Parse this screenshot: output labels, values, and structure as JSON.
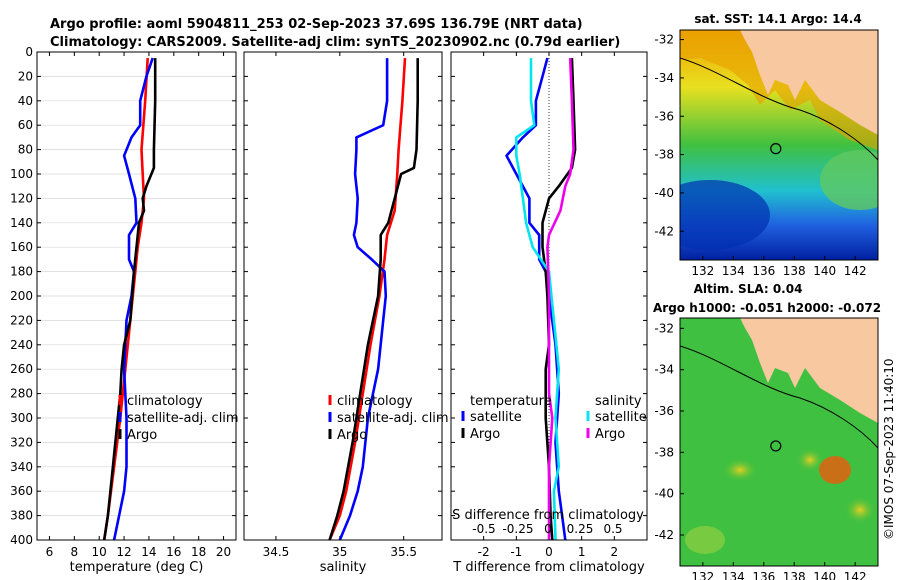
{
  "header": {
    "line1": "Argo profile: aoml 5904811_253 02-Sep-2023 37.69S 136.79E (NRT data)",
    "line2": "Climatology: CARS2009. Satellite-adj clim: synTS_20230902.nc (0.79d earlier)"
  },
  "colors": {
    "clim": "#ff0000",
    "sat": "#0000ff",
    "argo": "#000000",
    "sat_s": "#00e5ee",
    "argo_s": "#ee00ee",
    "land": "#f8c8a0"
  },
  "chart_data": [
    {
      "type": "line",
      "id": "temp",
      "xlabel": "temperature (deg C)",
      "ylabel": "",
      "xlim": [
        5,
        21
      ],
      "ylim": [
        400,
        0
      ],
      "xticks": [
        6,
        8,
        10,
        12,
        14,
        16,
        18,
        20
      ],
      "yticks": [
        0,
        20,
        40,
        60,
        80,
        100,
        120,
        140,
        160,
        180,
        200,
        220,
        240,
        260,
        280,
        300,
        320,
        340,
        360,
        380,
        400
      ],
      "legend": [
        "climatology",
        "satellite-adj. clim",
        "Argo"
      ],
      "series": [
        {
          "name": "climatology",
          "color": "#ff0000",
          "points": [
            [
              13.9,
              5
            ],
            [
              13.7,
              40
            ],
            [
              13.4,
              80
            ],
            [
              13.5,
              100
            ],
            [
              13.6,
              120
            ],
            [
              13.4,
              140
            ],
            [
              13.1,
              160
            ],
            [
              12.9,
              180
            ],
            [
              12.5,
              220
            ],
            [
              12.1,
              260
            ],
            [
              11.7,
              300
            ],
            [
              11.2,
              340
            ],
            [
              10.7,
              380
            ],
            [
              10.4,
              400
            ]
          ]
        },
        {
          "name": "satellite-adj. clim",
          "color": "#0000ff",
          "points": [
            [
              14.3,
              5
            ],
            [
              13.8,
              20
            ],
            [
              13.3,
              40
            ],
            [
              13.3,
              60
            ],
            [
              12.6,
              70
            ],
            [
              12.0,
              85
            ],
            [
              12.4,
              100
            ],
            [
              12.9,
              120
            ],
            [
              13.0,
              140
            ],
            [
              12.4,
              150
            ],
            [
              12.4,
              170
            ],
            [
              12.8,
              180
            ],
            [
              12.6,
              200
            ],
            [
              12.2,
              220
            ],
            [
              12.0,
              260
            ],
            [
              12.2,
              300
            ],
            [
              12.2,
              340
            ],
            [
              12.0,
              360
            ],
            [
              11.6,
              380
            ],
            [
              11.2,
              400
            ]
          ]
        },
        {
          "name": "Argo",
          "color": "#000000",
          "points": [
            [
              14.5,
              5
            ],
            [
              14.5,
              40
            ],
            [
              14.4,
              80
            ],
            [
              14.4,
              95
            ],
            [
              14.2,
              100
            ],
            [
              13.8,
              110
            ],
            [
              13.5,
              120
            ],
            [
              13.6,
              130
            ],
            [
              13.2,
              140
            ],
            [
              13.0,
              160
            ],
            [
              12.8,
              180
            ],
            [
              12.5,
              220
            ],
            [
              12.0,
              240
            ],
            [
              11.8,
              260
            ],
            [
              11.7,
              280
            ],
            [
              11.5,
              300
            ],
            [
              11.1,
              340
            ],
            [
              10.7,
              380
            ],
            [
              10.4,
              400
            ]
          ]
        }
      ]
    },
    {
      "type": "line",
      "id": "sal",
      "xlabel": "salinity",
      "xlim": [
        34.25,
        35.8
      ],
      "ylim": [
        400,
        0
      ],
      "xticks": [
        34.5,
        35,
        35.5
      ],
      "xticklabels": [
        "34.5",
        "35",
        "35.5"
      ],
      "legend": [
        "climatology",
        "satellite-adj. clim",
        "Argo"
      ],
      "series": [
        {
          "name": "climatology",
          "color": "#ff0000",
          "points": [
            [
              35.51,
              5
            ],
            [
              35.49,
              40
            ],
            [
              35.46,
              80
            ],
            [
              35.45,
              100
            ],
            [
              35.43,
              130
            ],
            [
              35.37,
              150
            ],
            [
              35.35,
              170
            ],
            [
              35.31,
              200
            ],
            [
              35.24,
              240
            ],
            [
              35.18,
              280
            ],
            [
              35.12,
              320
            ],
            [
              35.05,
              360
            ],
            [
              35.0,
              380
            ],
            [
              34.92,
              400
            ]
          ]
        },
        {
          "name": "satellite-adj. clim",
          "color": "#0000ff",
          "points": [
            [
              35.37,
              5
            ],
            [
              35.37,
              40
            ],
            [
              35.34,
              60
            ],
            [
              35.13,
              70
            ],
            [
              35.13,
              80
            ],
            [
              35.12,
              100
            ],
            [
              35.14,
              120
            ],
            [
              35.13,
              140
            ],
            [
              35.11,
              150
            ],
            [
              35.14,
              160
            ],
            [
              35.25,
              170
            ],
            [
              35.35,
              180
            ],
            [
              35.36,
              200
            ],
            [
              35.34,
              220
            ],
            [
              35.3,
              260
            ],
            [
              35.22,
              300
            ],
            [
              35.18,
              340
            ],
            [
              35.14,
              360
            ],
            [
              35.08,
              380
            ],
            [
              35.0,
              400
            ]
          ]
        },
        {
          "name": "Argo",
          "color": "#000000",
          "points": [
            [
              35.61,
              5
            ],
            [
              35.61,
              40
            ],
            [
              35.6,
              80
            ],
            [
              35.58,
              95
            ],
            [
              35.48,
              100
            ],
            [
              35.43,
              120
            ],
            [
              35.38,
              140
            ],
            [
              35.32,
              150
            ],
            [
              35.32,
              170
            ],
            [
              35.3,
              200
            ],
            [
              35.22,
              240
            ],
            [
              35.16,
              280
            ],
            [
              35.1,
              320
            ],
            [
              35.03,
              360
            ],
            [
              34.98,
              380
            ],
            [
              34.92,
              400
            ]
          ]
        }
      ]
    },
    {
      "type": "line",
      "id": "diff",
      "xlabel": "T difference from climatology",
      "xlabel2": "S difference from climatology",
      "xlim": [
        -3,
        3
      ],
      "ylim": [
        400,
        0
      ],
      "xticks": [
        -2,
        -1,
        0,
        1,
        2
      ],
      "s_ticks": [
        "-0.5",
        "-0.25",
        "0",
        "0.25",
        "0.5"
      ],
      "legend_t_title": "temperature",
      "legend_s_title": "salinity",
      "legend": [
        "satellite",
        "Argo",
        "satellite",
        "Argo"
      ],
      "series": [
        {
          "name": "satellite T",
          "color": "#0000ff",
          "points": [
            [
              -0.05,
              5
            ],
            [
              -0.2,
              20
            ],
            [
              -0.4,
              40
            ],
            [
              -0.4,
              60
            ],
            [
              -0.8,
              70
            ],
            [
              -1.3,
              85
            ],
            [
              -1.0,
              100
            ],
            [
              -0.6,
              120
            ],
            [
              -0.6,
              140
            ],
            [
              -0.3,
              150
            ],
            [
              -0.3,
              170
            ],
            [
              -0.1,
              180
            ],
            [
              0.0,
              200
            ],
            [
              0.2,
              240
            ],
            [
              0.3,
              280
            ],
            [
              0.2,
              320
            ],
            [
              0.3,
              360
            ],
            [
              0.4,
              380
            ],
            [
              0.5,
              400
            ]
          ]
        },
        {
          "name": "Argo T",
          "color": "#000000",
          "points": [
            [
              0.7,
              5
            ],
            [
              0.75,
              40
            ],
            [
              0.8,
              80
            ],
            [
              0.7,
              95
            ],
            [
              0.3,
              110
            ],
            [
              0.0,
              120
            ],
            [
              -0.2,
              140
            ],
            [
              -0.2,
              160
            ],
            [
              -0.1,
              180
            ],
            [
              -0.05,
              200
            ],
            [
              0.0,
              240
            ],
            [
              -0.1,
              260
            ],
            [
              -0.1,
              300
            ],
            [
              0.0,
              340
            ],
            [
              0.05,
              380
            ],
            [
              0.1,
              400
            ]
          ]
        },
        {
          "name": "satellite S",
          "color": "#00e5ee",
          "points": [
            [
              -0.55,
              5
            ],
            [
              -0.55,
              40
            ],
            [
              -0.45,
              60
            ],
            [
              -1.0,
              70
            ],
            [
              -1.0,
              85
            ],
            [
              -0.9,
              100
            ],
            [
              -0.8,
              120
            ],
            [
              -0.7,
              140
            ],
            [
              -0.5,
              160
            ],
            [
              0.0,
              180
            ],
            [
              0.15,
              220
            ],
            [
              0.3,
              260
            ],
            [
              0.2,
              300
            ],
            [
              0.3,
              340
            ],
            [
              0.15,
              360
            ],
            [
              0.2,
              400
            ]
          ]
        },
        {
          "name": "Argo S",
          "color": "#ee00ee",
          "points": [
            [
              0.65,
              5
            ],
            [
              0.7,
              40
            ],
            [
              0.75,
              80
            ],
            [
              0.65,
              100
            ],
            [
              0.5,
              110
            ],
            [
              0.35,
              130
            ],
            [
              0.0,
              150
            ],
            [
              -0.05,
              160
            ],
            [
              0.0,
              200
            ],
            [
              0.0,
              240
            ],
            [
              0.0,
              280
            ],
            [
              0.1,
              300
            ],
            [
              0.0,
              340
            ],
            [
              0.0,
              400
            ]
          ]
        }
      ]
    },
    {
      "type": "heatmap",
      "id": "sst_map",
      "title": "sat. SST: 14.1 Argo: 14.4",
      "xticks": [
        132,
        134,
        136,
        138,
        140,
        142
      ],
      "yticks": [
        -32,
        -34,
        -36,
        -38,
        -40,
        -42
      ],
      "xlim": [
        130.5,
        143.5
      ],
      "ylim": [
        -43.5,
        -31.5
      ],
      "marker": [
        136.79,
        -37.69
      ]
    },
    {
      "type": "heatmap",
      "id": "sla_map",
      "title": "Altim. SLA: 0.04",
      "title2": "Argo h1000: -0.051 h2000: -0.072",
      "xticks": [
        132,
        134,
        136,
        138,
        140,
        142
      ],
      "yticks": [
        -32,
        -34,
        -36,
        -38,
        -40,
        -42
      ],
      "xlim": [
        130.5,
        143.5
      ],
      "ylim": [
        -43.5,
        -31.5
      ],
      "marker": [
        136.79,
        -37.69
      ]
    }
  ],
  "watermark": "©IMOS 07-Sep-2023 11:40:10"
}
